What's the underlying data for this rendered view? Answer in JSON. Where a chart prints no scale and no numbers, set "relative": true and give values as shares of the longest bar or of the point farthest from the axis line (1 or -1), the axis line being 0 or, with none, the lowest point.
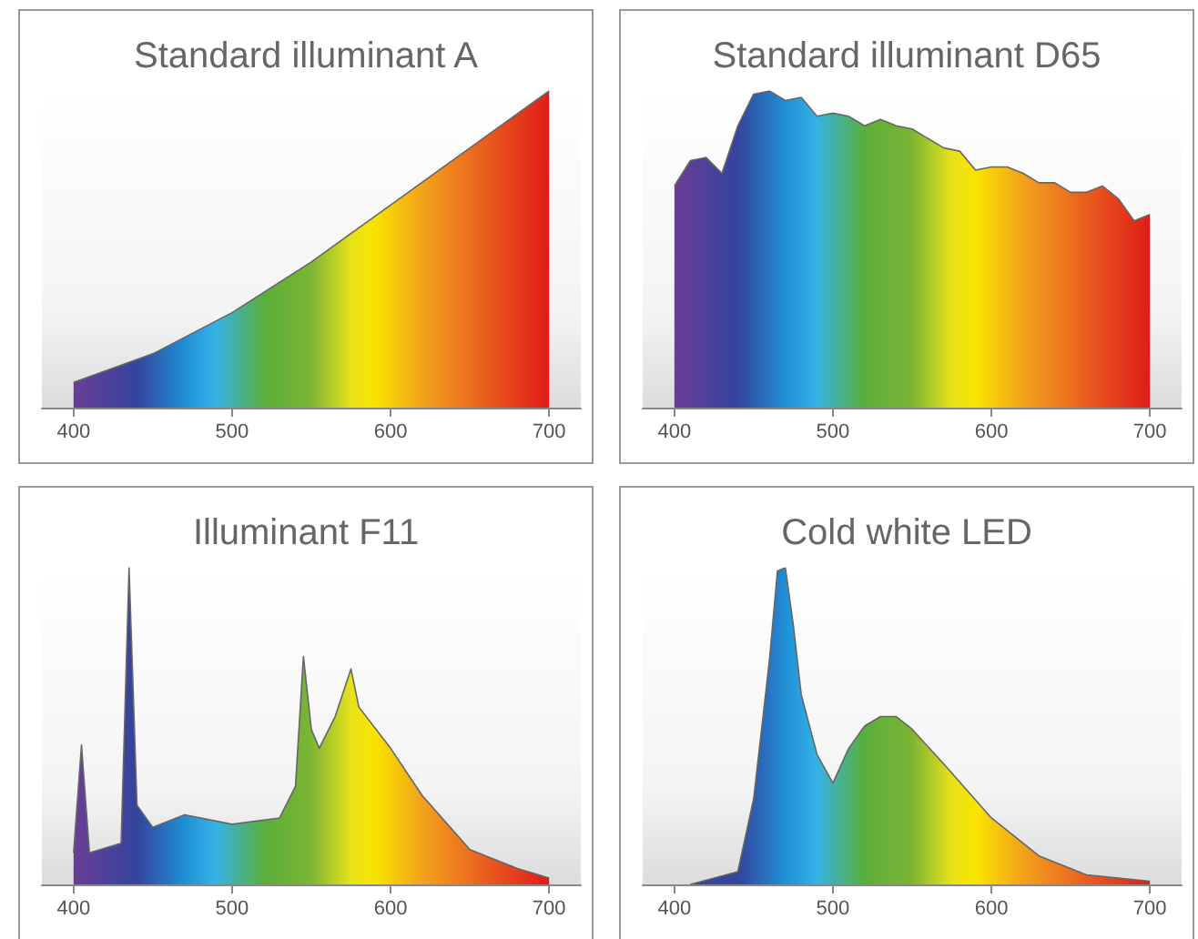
{
  "chart_data": [
    {
      "type": "area",
      "title": "Standard illuminant A",
      "relative": true,
      "marker": "none",
      "xlim": [
        380,
        720
      ],
      "xticks": [
        400,
        500,
        600,
        700
      ],
      "x": [
        400,
        450,
        500,
        550,
        600,
        650,
        700
      ],
      "values": [
        0.08,
        0.17,
        0.3,
        0.46,
        0.64,
        0.82,
        1
      ]
    },
    {
      "type": "area",
      "title": "Standard illuminant D65",
      "relative": true,
      "marker": "none",
      "xlim": [
        380,
        720
      ],
      "xticks": [
        400,
        500,
        600,
        700
      ],
      "x": [
        400,
        410,
        420,
        430,
        440,
        450,
        460,
        470,
        480,
        490,
        500,
        510,
        520,
        530,
        540,
        550,
        560,
        570,
        580,
        590,
        600,
        610,
        620,
        630,
        640,
        650,
        660,
        670,
        680,
        690,
        700
      ],
      "values": [
        0.7,
        0.78,
        0.79,
        0.74,
        0.89,
        0.99,
        1,
        0.97,
        0.98,
        0.92,
        0.93,
        0.92,
        0.89,
        0.91,
        0.89,
        0.88,
        0.85,
        0.82,
        0.81,
        0.75,
        0.76,
        0.76,
        0.74,
        0.71,
        0.71,
        0.68,
        0.68,
        0.7,
        0.66,
        0.59,
        0.61
      ]
    },
    {
      "type": "area",
      "title": "Illuminant F11",
      "relative": true,
      "marker": "none",
      "xlim": [
        380,
        720
      ],
      "xticks": [
        400,
        500,
        600,
        700
      ],
      "x": [
        400,
        405,
        410,
        430,
        435,
        440,
        450,
        470,
        500,
        530,
        540,
        545,
        550,
        555,
        565,
        575,
        580,
        600,
        620,
        650,
        680,
        700
      ],
      "values": [
        0.1,
        0.44,
        0.1,
        0.13,
        1,
        0.25,
        0.18,
        0.22,
        0.19,
        0.21,
        0.31,
        0.72,
        0.49,
        0.43,
        0.53,
        0.68,
        0.56,
        0.43,
        0.28,
        0.11,
        0.05,
        0.02
      ]
    },
    {
      "type": "area",
      "title": "Cold white LED",
      "relative": true,
      "marker": "none",
      "xlim": [
        380,
        720
      ],
      "xticks": [
        400,
        500,
        600,
        700
      ],
      "x": [
        410,
        440,
        450,
        460,
        465,
        470,
        475,
        480,
        490,
        500,
        510,
        520,
        530,
        540,
        550,
        570,
        600,
        630,
        660,
        700
      ],
      "values": [
        0,
        0.04,
        0.27,
        0.71,
        0.99,
        1,
        0.82,
        0.6,
        0.41,
        0.32,
        0.43,
        0.5,
        0.53,
        0.53,
        0.49,
        0.38,
        0.21,
        0.09,
        0.03,
        0.01
      ]
    }
  ]
}
